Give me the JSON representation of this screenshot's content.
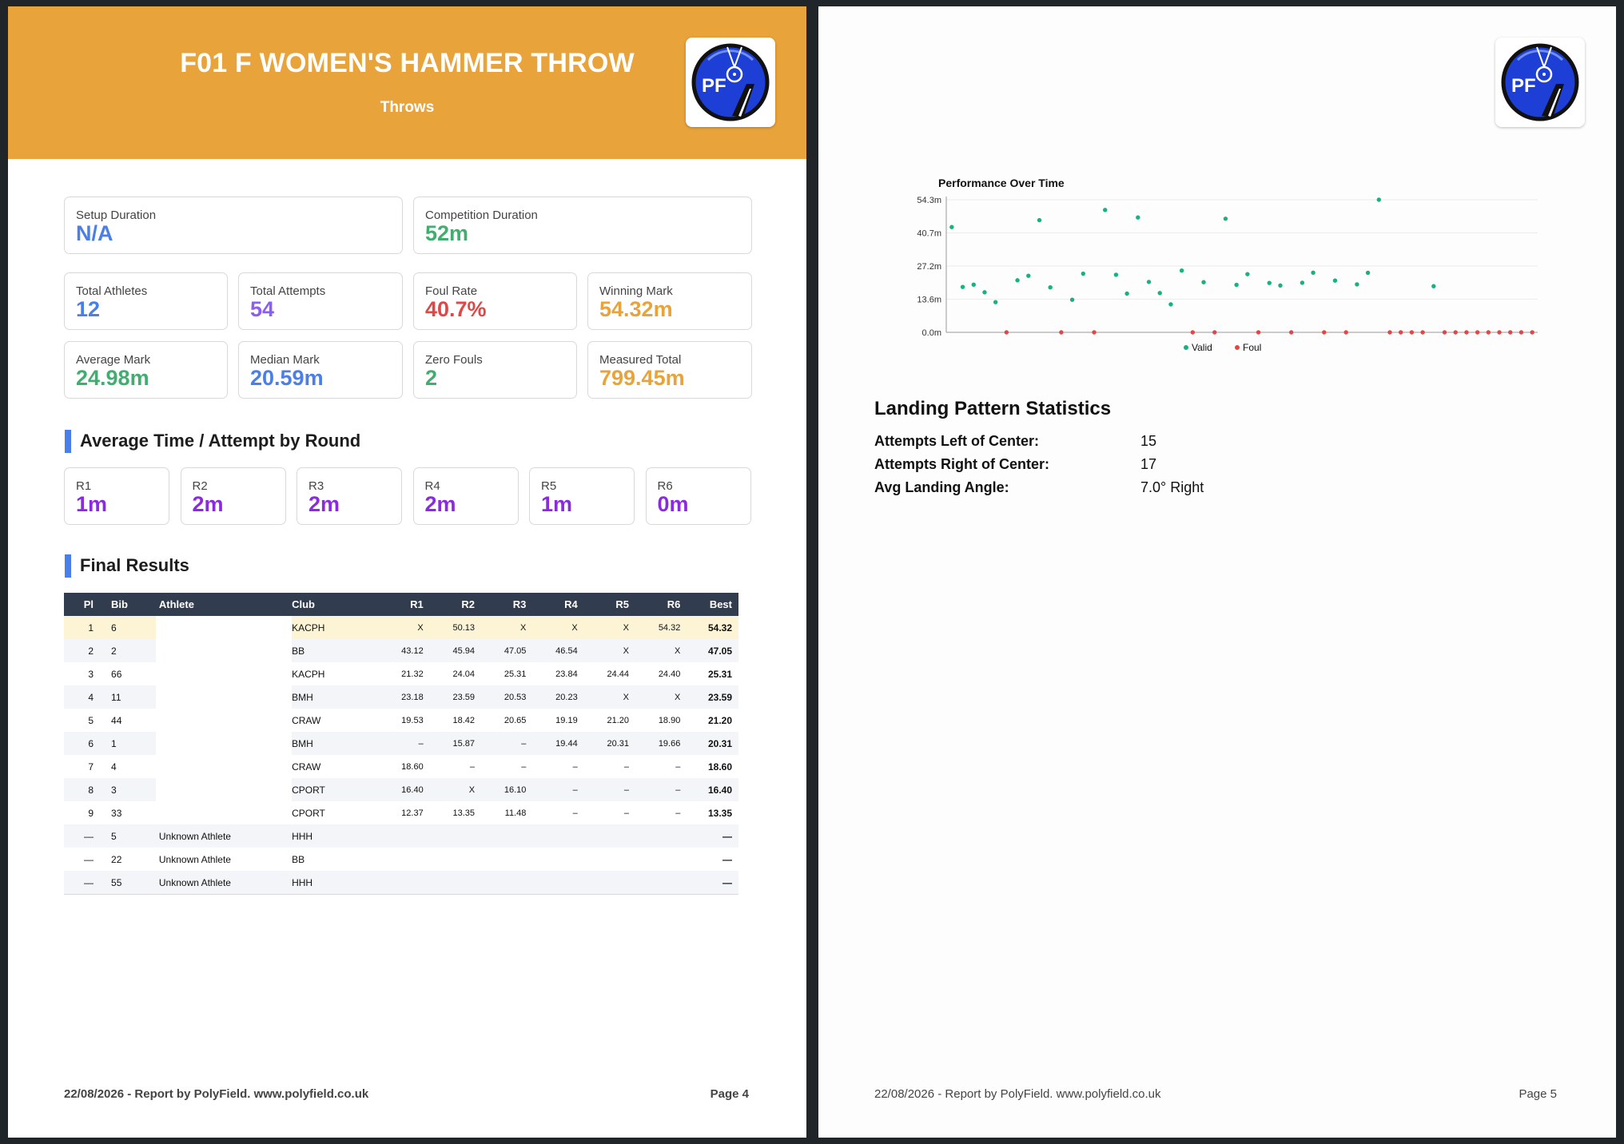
{
  "page4": {
    "title": "F01 F WOMEN'S HAMMER THROW",
    "subtitle": "Throws",
    "logo_text": "PF",
    "stats": [
      {
        "label": "Setup Duration",
        "value": "N/A",
        "color": "#4a7ee8"
      },
      {
        "label": "Competition Duration",
        "value": "52m",
        "color": "#3fae6e"
      },
      {
        "label": "Total Athletes",
        "value": "12",
        "color": "#4a7ee8"
      },
      {
        "label": "Total Attempts",
        "value": "54",
        "color": "#8b5cf6"
      },
      {
        "label": "Foul Rate",
        "value": "40.7%",
        "color": "#e04848"
      },
      {
        "label": "Winning Mark",
        "value": "54.32m",
        "color": "#e8a33a"
      },
      {
        "label": "Average Mark",
        "value": "24.98m",
        "color": "#3fae6e"
      },
      {
        "label": "Median Mark",
        "value": "20.59m",
        "color": "#4a7ee8"
      },
      {
        "label": "Zero Fouls",
        "value": "2",
        "color": "#3fae6e"
      },
      {
        "label": "Measured Total",
        "value": "799.45m",
        "color": "#e8a33a"
      }
    ],
    "round_heading": "Average Time / Attempt by Round",
    "rounds": [
      {
        "label": "R1",
        "value": "1m"
      },
      {
        "label": "R2",
        "value": "2m"
      },
      {
        "label": "R3",
        "value": "2m"
      },
      {
        "label": "R4",
        "value": "2m"
      },
      {
        "label": "R5",
        "value": "1m"
      },
      {
        "label": "R6",
        "value": "0m"
      }
    ],
    "round_color": "#8a2be2",
    "results_heading": "Final Results",
    "table": {
      "headers": [
        "Pl",
        "Bib",
        "Athlete",
        "Club",
        "R1",
        "R2",
        "R3",
        "R4",
        "R5",
        "R6",
        "Best"
      ],
      "rows": [
        [
          "1",
          "6",
          "",
          "KACPH",
          "X",
          "50.13",
          "X",
          "X",
          "X",
          "54.32",
          "54.32"
        ],
        [
          "2",
          "2",
          "",
          "BB",
          "43.12",
          "45.94",
          "47.05",
          "46.54",
          "X",
          "X",
          "47.05"
        ],
        [
          "3",
          "66",
          "",
          "KACPH",
          "21.32",
          "24.04",
          "25.31",
          "23.84",
          "24.44",
          "24.40",
          "25.31"
        ],
        [
          "4",
          "11",
          "",
          "BMH",
          "23.18",
          "23.59",
          "20.53",
          "20.23",
          "X",
          "X",
          "23.59"
        ],
        [
          "5",
          "44",
          "",
          "CRAW",
          "19.53",
          "18.42",
          "20.65",
          "19.19",
          "21.20",
          "18.90",
          "21.20"
        ],
        [
          "6",
          "1",
          "",
          "BMH",
          "–",
          "15.87",
          "–",
          "19.44",
          "20.31",
          "19.66",
          "20.31"
        ],
        [
          "7",
          "4",
          "",
          "CRAW",
          "18.60",
          "–",
          "–",
          "–",
          "–",
          "–",
          "18.60"
        ],
        [
          "8",
          "3",
          "",
          "CPORT",
          "16.40",
          "X",
          "16.10",
          "–",
          "–",
          "–",
          "16.40"
        ],
        [
          "9",
          "33",
          "",
          "CPORT",
          "12.37",
          "13.35",
          "11.48",
          "–",
          "–",
          "–",
          "13.35"
        ],
        [
          "—",
          "5",
          "Unknown Athlete",
          "HHH",
          "",
          "",
          "",
          "",
          "",
          "",
          "—"
        ],
        [
          "—",
          "22",
          "Unknown Athlete",
          "BB",
          "",
          "",
          "",
          "",
          "",
          "",
          "—"
        ],
        [
          "—",
          "55",
          "Unknown Athlete",
          "HHH",
          "",
          "",
          "",
          "",
          "",
          "",
          "—"
        ]
      ]
    },
    "footer_left": "22/08/2026 - Report by PolyField. www.polyfield.co.uk",
    "footer_right": "Page 4"
  },
  "page5": {
    "logo_text": "PF",
    "stats_heading": "Landing Pattern Statistics",
    "landing": [
      {
        "label": "Attempts Left of Center:",
        "value": "15"
      },
      {
        "label": "Attempts Right of Center:",
        "value": "17"
      },
      {
        "label": "Avg Landing Angle:",
        "value": "7.0° Right"
      }
    ],
    "footer_left": "22/08/2026 - Report by PolyField. www.polyfield.co.uk",
    "footer_right": "Page 5"
  },
  "chart_data": {
    "type": "scatter",
    "title": "Performance Over Time",
    "y_ticks": [
      "0.0m",
      "13.6m",
      "27.2m",
      "40.7m",
      "54.3m"
    ],
    "ylim": [
      0,
      54.32
    ],
    "grid": true,
    "legend": "bottom",
    "series": [
      {
        "name": "Valid",
        "color": "#17b182",
        "points": [
          [
            1,
            43.12
          ],
          [
            2,
            18.6
          ],
          [
            3,
            19.53
          ],
          [
            4,
            16.4
          ],
          [
            5,
            12.37
          ],
          [
            7,
            21.32
          ],
          [
            8,
            23.18
          ],
          [
            9,
            45.94
          ],
          [
            10,
            18.42
          ],
          [
            12,
            13.35
          ],
          [
            13,
            24.04
          ],
          [
            15,
            50.13
          ],
          [
            16,
            23.59
          ],
          [
            17,
            15.87
          ],
          [
            18,
            47.05
          ],
          [
            19,
            20.65
          ],
          [
            20,
            16.1
          ],
          [
            21,
            11.48
          ],
          [
            22,
            25.31
          ],
          [
            24,
            20.53
          ],
          [
            26,
            46.54
          ],
          [
            27,
            19.44
          ],
          [
            28,
            23.84
          ],
          [
            30,
            20.23
          ],
          [
            31,
            19.19
          ],
          [
            33,
            20.31
          ],
          [
            34,
            24.44
          ],
          [
            36,
            21.2
          ],
          [
            38,
            19.66
          ],
          [
            39,
            24.4
          ],
          [
            40,
            54.32
          ],
          [
            45,
            18.9
          ]
        ]
      },
      {
        "name": "Foul",
        "color": "#e04848",
        "points": [
          [
            6,
            0
          ],
          [
            11,
            0
          ],
          [
            25,
            0
          ],
          [
            29,
            0
          ],
          [
            32,
            0
          ],
          [
            35,
            0
          ],
          [
            37,
            0
          ],
          [
            41,
            0
          ],
          [
            43,
            0
          ],
          [
            44,
            0
          ],
          [
            46,
            0
          ],
          [
            47,
            0
          ],
          [
            48,
            0
          ],
          [
            49,
            0
          ],
          [
            50,
            0
          ],
          [
            51,
            0
          ],
          [
            52,
            0
          ],
          [
            53,
            0
          ],
          [
            54,
            0
          ],
          [
            23,
            0
          ],
          [
            42,
            0
          ],
          [
            14,
            0
          ]
        ]
      }
    ],
    "x_count": 54
  }
}
